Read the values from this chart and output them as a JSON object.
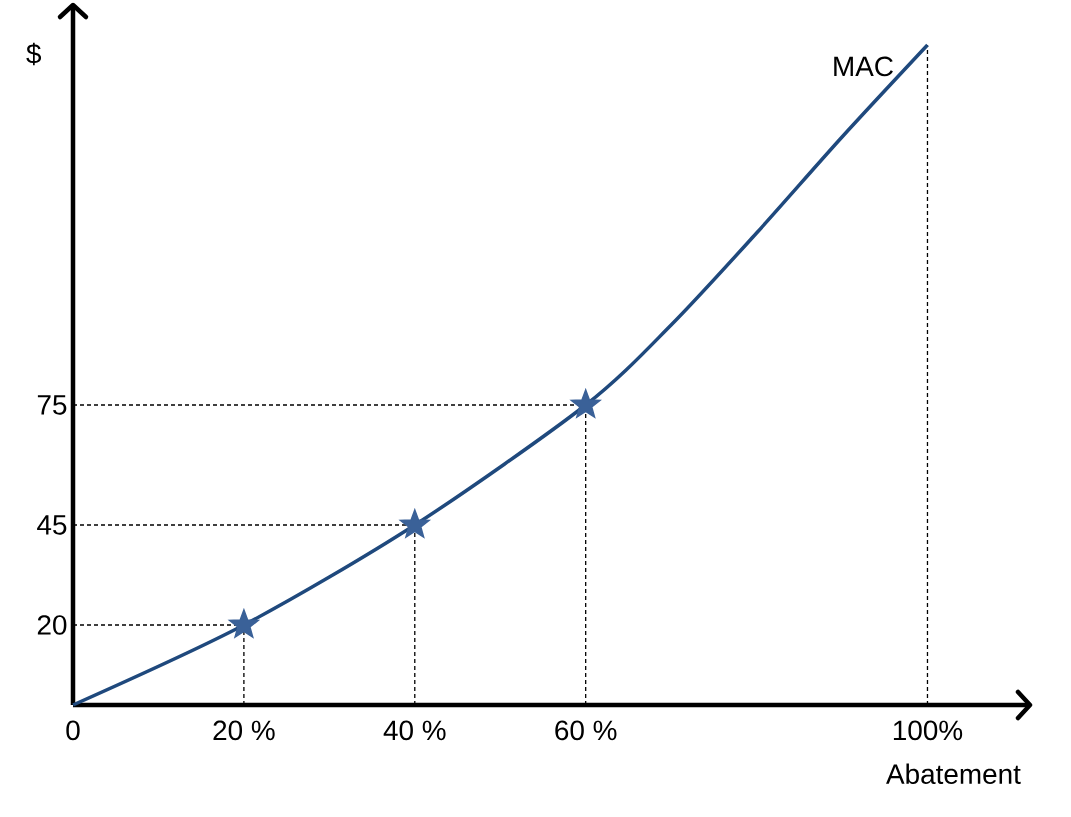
{
  "chart_data": {
    "type": "line",
    "xlabel": "Abatement",
    "ylabel": "$",
    "series": [
      {
        "name": "MAC",
        "type": "line",
        "color": "#1f497d",
        "marker": "none",
        "x": [
          0,
          20,
          40,
          60,
          70,
          80,
          90,
          100
        ],
        "values": [
          0,
          20,
          45,
          75,
          95,
          118,
          142,
          165
        ]
      },
      {
        "type": "scatter",
        "color": "#3a6198",
        "marker": "star",
        "x": [
          20,
          40,
          60
        ],
        "values": [
          20,
          45,
          75
        ]
      }
    ],
    "xlim": [
      0,
      112
    ],
    "ylim": [
      0,
      175
    ],
    "xticks": [
      0,
      {
        "value": 20,
        "label": "20 %"
      },
      {
        "value": 40,
        "label": "40 %"
      },
      {
        "value": 60,
        "label": "60 %"
      },
      {
        "value": 100,
        "label": "100%"
      }
    ],
    "yticks": [
      20,
      45,
      75
    ],
    "ref_lines": [
      {
        "axis": "x",
        "value": 20,
        "line_style": "dashed",
        "color": "#000000"
      },
      {
        "axis": "x",
        "value": 40,
        "line_style": "dashed",
        "color": "#000000"
      },
      {
        "axis": "x",
        "value": 60,
        "line_style": "dashed",
        "color": "#000000"
      },
      {
        "axis": "x",
        "value": 100,
        "line_style": "dashed",
        "color": "#000000"
      },
      {
        "axis": "y",
        "value": 20,
        "line_style": "dashed",
        "color": "#000000"
      },
      {
        "axis": "y",
        "value": 45,
        "line_style": "dashed",
        "color": "#000000"
      },
      {
        "axis": "y",
        "value": 75,
        "line_style": "dashed",
        "color": "#000000"
      }
    ]
  }
}
